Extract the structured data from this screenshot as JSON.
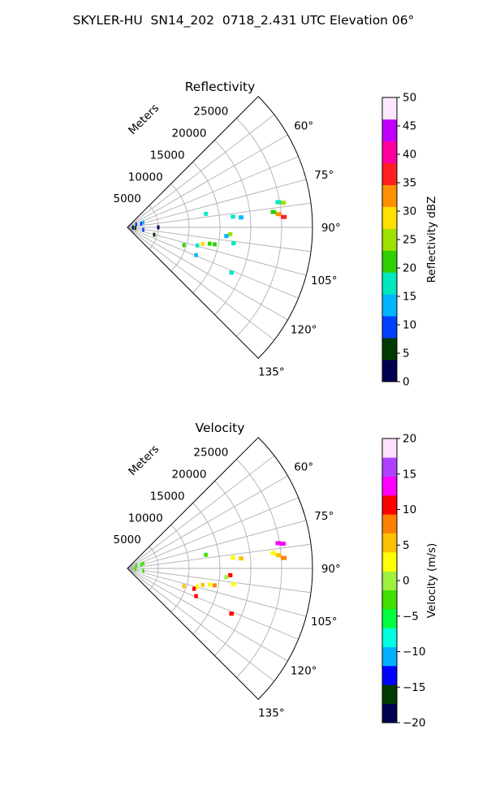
{
  "figure": {
    "suptitle": "SKYLER-HU  SN14_202  0718_2.431 UTC Elevation 06°"
  },
  "chart_data": [
    {
      "type": "polar-ppi",
      "title": "Reflectivity",
      "range_label": "Meters",
      "range_ticks": [
        5000,
        10000,
        15000,
        20000,
        25000
      ],
      "range_tick_labels": [
        "5000",
        "10000",
        "15000",
        "20000",
        "25000"
      ],
      "range_max": 30000,
      "azimuth_range": [
        45,
        135
      ],
      "azimuth_ticks": [
        60,
        75,
        90,
        105,
        120,
        135
      ],
      "azimuth_tick_labels": [
        "60°",
        "75°",
        "90°",
        "105°",
        "120°",
        "135°"
      ],
      "grid": true,
      "colorbar": {
        "label": "Reflectivity dBZ",
        "range": [
          0,
          50
        ],
        "ticks": [
          "0",
          "5",
          "10",
          "15",
          "20",
          "25",
          "30",
          "35",
          "40",
          "45",
          "50"
        ],
        "colors": [
          "#000050",
          "#003a00",
          "#0040ff",
          "#00b4ff",
          "#00e8c0",
          "#30d000",
          "#a0e000",
          "#ffe000",
          "#ff9000",
          "#ff2020",
          "#ff00a0",
          "#c000ff",
          "#ffe8ff"
        ]
      },
      "echoes": [
        {
          "az": 81.0,
          "range": 25500,
          "value": 26
        },
        {
          "az": 80.5,
          "range": 24800,
          "value": 18
        },
        {
          "az": 85.0,
          "range": 24600,
          "value": 31
        },
        {
          "az": 86.2,
          "range": 25400,
          "value": 35
        },
        {
          "az": 84.0,
          "range": 23800,
          "value": 21
        },
        {
          "az": 85.0,
          "range": 18500,
          "value": 15
        },
        {
          "az": 84.2,
          "range": 17200,
          "value": 17
        },
        {
          "az": 80.2,
          "range": 12900,
          "value": 16
        },
        {
          "az": 93.8,
          "range": 16700,
          "value": 24
        },
        {
          "az": 95.0,
          "range": 16100,
          "value": 14
        },
        {
          "az": 101.0,
          "range": 14400,
          "value": 22
        },
        {
          "az": 102.4,
          "range": 12500,
          "value": 28
        },
        {
          "az": 101.2,
          "range": 13600,
          "value": 23
        },
        {
          "az": 104.5,
          "range": 11700,
          "value": 19
        },
        {
          "az": 107.5,
          "range": 9600,
          "value": 21
        },
        {
          "az": 113.5,
          "range": 18400,
          "value": 18
        },
        {
          "az": 98.5,
          "range": 17400,
          "value": 16
        },
        {
          "az": 112.0,
          "range": 12000,
          "value": 15
        },
        {
          "az": 105.4,
          "range": 4500,
          "value": 4
        },
        {
          "az": 71.0,
          "range": 1500,
          "value": 10
        },
        {
          "az": 75.0,
          "range": 2300,
          "value": 9
        },
        {
          "az": 73.0,
          "range": 2700,
          "value": 12
        },
        {
          "az": 92.0,
          "range": 900,
          "value": 3
        },
        {
          "az": 95.0,
          "range": 1300,
          "value": 6
        },
        {
          "az": 99.0,
          "range": 2600,
          "value": 9
        },
        {
          "az": 90.0,
          "range": 5000,
          "value": 1
        }
      ]
    },
    {
      "type": "polar-ppi",
      "title": "Velocity",
      "range_label": "Meters",
      "range_ticks": [
        5000,
        10000,
        15000,
        20000,
        25000
      ],
      "range_tick_labels": [
        "5000",
        "10000",
        "15000",
        "20000",
        "25000"
      ],
      "range_max": 30000,
      "azimuth_range": [
        45,
        135
      ],
      "azimuth_ticks": [
        60,
        75,
        90,
        105,
        120,
        135
      ],
      "azimuth_tick_labels": [
        "60°",
        "75°",
        "90°",
        "105°",
        "120°",
        "135°"
      ],
      "grid": true,
      "colorbar": {
        "label": "Velocity (m/s)",
        "range": [
          -20,
          20
        ],
        "ticks": [
          "−20",
          "−15",
          "−10",
          "−5",
          "0",
          "5",
          "10",
          "15",
          "20"
        ],
        "colors": [
          "#000050",
          "#003a00",
          "#0000ff",
          "#00b0ff",
          "#00ffe0",
          "#00ff40",
          "#40e000",
          "#a0f040",
          "#ffff00",
          "#ffc000",
          "#ff8000",
          "#ff0000",
          "#ff00ff",
          "#b040ff",
          "#ffe0ff"
        ]
      },
      "echoes": [
        {
          "az": 81.0,
          "range": 25500,
          "value": 14
        },
        {
          "az": 80.5,
          "range": 24800,
          "value": 12
        },
        {
          "az": 85.0,
          "range": 24600,
          "value": 6
        },
        {
          "az": 86.2,
          "range": 25400,
          "value": 9
        },
        {
          "az": 84.0,
          "range": 23800,
          "value": 3
        },
        {
          "az": 85.0,
          "range": 18500,
          "value": 4
        },
        {
          "az": 84.2,
          "range": 17200,
          "value": 2
        },
        {
          "az": 80.2,
          "range": 12900,
          "value": -2
        },
        {
          "az": 93.8,
          "range": 16700,
          "value": 11
        },
        {
          "az": 95.0,
          "range": 16100,
          "value": 1
        },
        {
          "az": 101.0,
          "range": 14400,
          "value": 8
        },
        {
          "az": 102.4,
          "range": 12500,
          "value": 4
        },
        {
          "az": 101.2,
          "range": 13600,
          "value": 2
        },
        {
          "az": 104.5,
          "range": 11700,
          "value": 3
        },
        {
          "az": 107.5,
          "range": 9600,
          "value": 5
        },
        {
          "az": 107.0,
          "range": 11300,
          "value": 11
        },
        {
          "az": 113.5,
          "range": 18400,
          "value": 10
        },
        {
          "az": 98.5,
          "range": 17400,
          "value": 3
        },
        {
          "az": 112.0,
          "range": 12000,
          "value": 10
        },
        {
          "az": 71.0,
          "range": 1500,
          "value": -3
        },
        {
          "az": 75.0,
          "range": 2300,
          "value": -4
        },
        {
          "az": 73.0,
          "range": 2700,
          "value": -2
        },
        {
          "az": 95.0,
          "range": 1300,
          "value": -3
        },
        {
          "az": 99.0,
          "range": 2600,
          "value": -2
        }
      ]
    }
  ]
}
